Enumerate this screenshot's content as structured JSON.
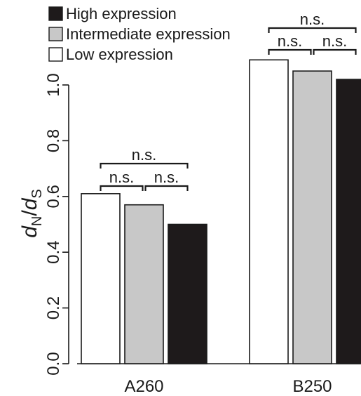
{
  "chart_data": {
    "type": "bar",
    "categories": [
      "A260",
      "B250"
    ],
    "series": [
      {
        "name": "Low expression",
        "color": "#ffffff",
        "values": [
          0.61,
          1.09
        ]
      },
      {
        "name": "Intermediate expression",
        "color": "#c8c8c8",
        "values": [
          0.57,
          1.05
        ]
      },
      {
        "name": "High expression",
        "color": "#1e1a1b",
        "values": [
          0.5,
          1.02
        ]
      }
    ],
    "legend_order": [
      "High expression",
      "Intermediate expression",
      "Low expression"
    ],
    "legend_position": "top-left",
    "ylabel_main": "d",
    "ylabel_sub_numerator": "N",
    "ylabel_sub_denominator": "S",
    "ylabel_slash": "/",
    "yticks": [
      "0.0",
      "0.2",
      "0.4",
      "0.6",
      "0.8",
      "1.0"
    ],
    "ylim": [
      0,
      1.15
    ],
    "grid": false,
    "significance": [
      {
        "group": "A260",
        "pair": [
          "Low expression",
          "Intermediate expression"
        ],
        "label": "n.s."
      },
      {
        "group": "A260",
        "pair": [
          "Intermediate expression",
          "High expression"
        ],
        "label": "n.s."
      },
      {
        "group": "A260",
        "pair": [
          "Low expression",
          "High expression"
        ],
        "label": "n.s."
      },
      {
        "group": "B250",
        "pair": [
          "Low expression",
          "Intermediate expression"
        ],
        "label": "n.s."
      },
      {
        "group": "B250",
        "pair": [
          "Intermediate expression",
          "High expression"
        ],
        "label": "n.s."
      },
      {
        "group": "B250",
        "pair": [
          "Low expression",
          "High expression"
        ],
        "label": "n.s."
      }
    ]
  }
}
